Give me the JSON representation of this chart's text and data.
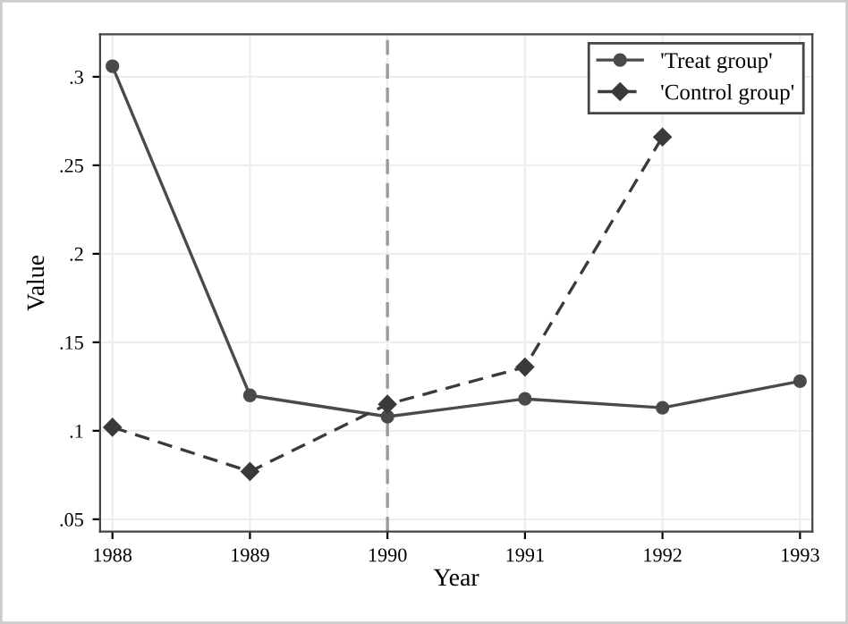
{
  "chart_data": {
    "type": "line",
    "xlabel": "Year",
    "ylabel": "Value",
    "x": [
      1988,
      1989,
      1990,
      1991,
      1992,
      1993
    ],
    "series": [
      {
        "name": "'Treat group'",
        "color": "#4a4a4a",
        "marker": "circle",
        "line_style": "solid",
        "values": [
          0.306,
          0.12,
          0.108,
          0.118,
          0.113,
          0.128
        ]
      },
      {
        "name": "'Control group'",
        "color": "#3a3a3a",
        "marker": "diamond",
        "line_style": "dashed",
        "values": [
          0.102,
          0.077,
          0.115,
          0.136,
          0.266,
          null
        ]
      }
    ],
    "xlim": [
      1987.91,
      1993.09
    ],
    "ylim": [
      0.043,
      0.324
    ],
    "xticks": [
      1988,
      1989,
      1990,
      1991,
      1992,
      1993
    ],
    "yticks": [
      {
        "value": 0.05,
        "label": ".05"
      },
      {
        "value": 0.1,
        "label": ".1"
      },
      {
        "value": 0.15,
        "label": ".15"
      },
      {
        "value": 0.2,
        "label": ".2"
      },
      {
        "value": 0.25,
        "label": ".25"
      },
      {
        "value": 0.3,
        "label": ".3"
      }
    ],
    "ref_lines": [
      {
        "axis": "x",
        "value": 1990,
        "label": null,
        "color": "#999999",
        "line_style": "dashed"
      }
    ],
    "grid": true,
    "legend": "top right"
  }
}
